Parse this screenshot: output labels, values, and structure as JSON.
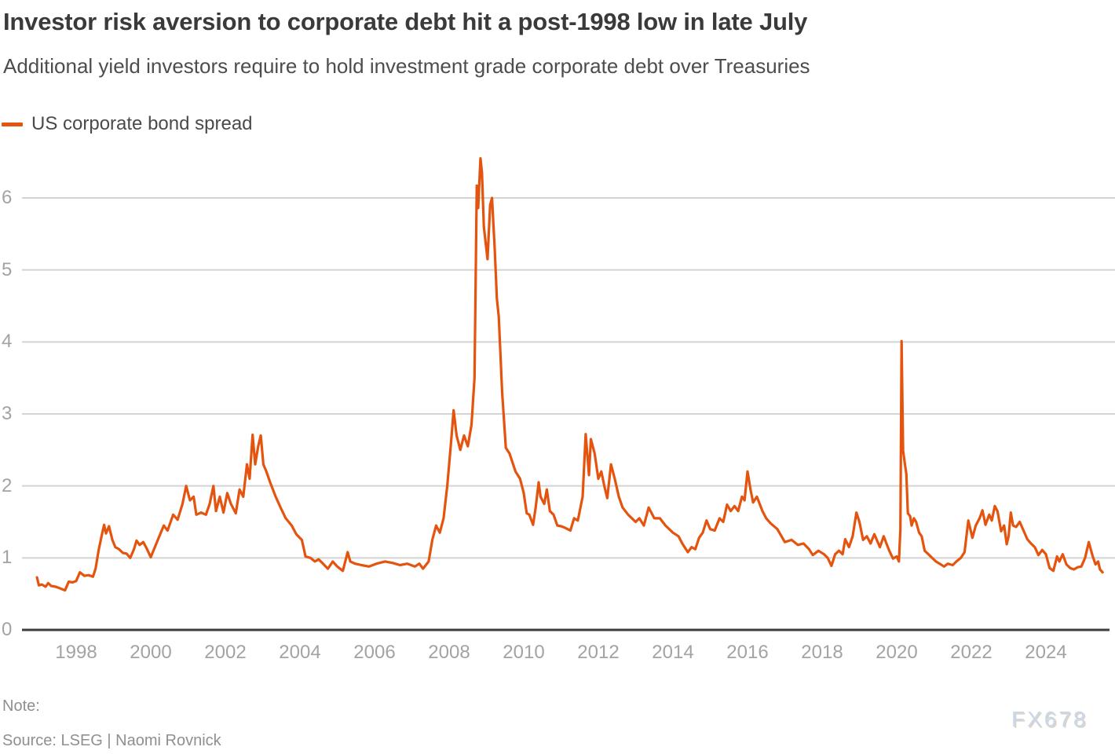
{
  "header": {
    "title": "Investor risk aversion to corporate debt hit a post-1998 low in late July",
    "subtitle": "Additional yield investors require to hold investment grade corporate debt over Treasuries"
  },
  "legend": {
    "label": "US corporate bond spread",
    "color": "#e4540e"
  },
  "chart_data": {
    "type": "line",
    "title": "Investor risk aversion to corporate debt hit a post-1998 low in late July",
    "subtitle": "Additional yield investors require to hold investment grade corporate debt over Treasuries",
    "xlabel": "",
    "ylabel": "",
    "grid": "horizontal",
    "legend_position": "top-left",
    "x_ticks": [
      1998,
      2000,
      2002,
      2004,
      2006,
      2008,
      2010,
      2012,
      2014,
      2016,
      2018,
      2020,
      2022,
      2024
    ],
    "y_ticks": [
      0,
      1,
      2,
      3,
      4,
      5,
      6
    ],
    "xlim": [
      1996.8,
      2025.9
    ],
    "ylim": [
      0,
      6.7
    ],
    "series": [
      {
        "name": "US corporate bond spread",
        "color": "#e4540e",
        "points": [
          [
            1996.95,
            0.73
          ],
          [
            1997.0,
            0.62
          ],
          [
            1997.08,
            0.63
          ],
          [
            1997.18,
            0.6
          ],
          [
            1997.25,
            0.65
          ],
          [
            1997.33,
            0.61
          ],
          [
            1997.45,
            0.6
          ],
          [
            1997.55,
            0.58
          ],
          [
            1997.7,
            0.55
          ],
          [
            1997.8,
            0.67
          ],
          [
            1997.9,
            0.66
          ],
          [
            1998.0,
            0.68
          ],
          [
            1998.1,
            0.8
          ],
          [
            1998.22,
            0.75
          ],
          [
            1998.33,
            0.76
          ],
          [
            1998.45,
            0.74
          ],
          [
            1998.52,
            0.85
          ],
          [
            1998.6,
            1.1
          ],
          [
            1998.68,
            1.3
          ],
          [
            1998.75,
            1.46
          ],
          [
            1998.8,
            1.34
          ],
          [
            1998.88,
            1.44
          ],
          [
            1998.97,
            1.25
          ],
          [
            1999.05,
            1.15
          ],
          [
            1999.15,
            1.12
          ],
          [
            1999.25,
            1.07
          ],
          [
            1999.35,
            1.06
          ],
          [
            1999.45,
            1.0
          ],
          [
            1999.55,
            1.12
          ],
          [
            1999.62,
            1.24
          ],
          [
            1999.7,
            1.18
          ],
          [
            1999.8,
            1.22
          ],
          [
            1999.9,
            1.12
          ],
          [
            2000.0,
            1.01
          ],
          [
            2000.15,
            1.2
          ],
          [
            2000.35,
            1.45
          ],
          [
            2000.45,
            1.38
          ],
          [
            2000.6,
            1.6
          ],
          [
            2000.72,
            1.53
          ],
          [
            2000.85,
            1.75
          ],
          [
            2000.95,
            2.0
          ],
          [
            2001.05,
            1.8
          ],
          [
            2001.15,
            1.85
          ],
          [
            2001.22,
            1.6
          ],
          [
            2001.35,
            1.63
          ],
          [
            2001.48,
            1.6
          ],
          [
            2001.58,
            1.75
          ],
          [
            2001.68,
            2.0
          ],
          [
            2001.75,
            1.65
          ],
          [
            2001.85,
            1.85
          ],
          [
            2001.95,
            1.63
          ],
          [
            2002.05,
            1.9
          ],
          [
            2002.15,
            1.75
          ],
          [
            2002.28,
            1.62
          ],
          [
            2002.38,
            1.95
          ],
          [
            2002.48,
            1.85
          ],
          [
            2002.58,
            2.3
          ],
          [
            2002.65,
            2.1
          ],
          [
            2002.73,
            2.71
          ],
          [
            2002.8,
            2.3
          ],
          [
            2002.88,
            2.55
          ],
          [
            2002.95,
            2.7
          ],
          [
            2003.02,
            2.3
          ],
          [
            2003.1,
            2.2
          ],
          [
            2003.2,
            2.05
          ],
          [
            2003.35,
            1.85
          ],
          [
            2003.48,
            1.7
          ],
          [
            2003.62,
            1.55
          ],
          [
            2003.78,
            1.45
          ],
          [
            2003.9,
            1.33
          ],
          [
            2004.05,
            1.25
          ],
          [
            2004.15,
            1.02
          ],
          [
            2004.28,
            1.0
          ],
          [
            2004.4,
            0.95
          ],
          [
            2004.5,
            0.98
          ],
          [
            2004.62,
            0.92
          ],
          [
            2004.75,
            0.85
          ],
          [
            2004.88,
            0.95
          ],
          [
            2005.0,
            0.88
          ],
          [
            2005.15,
            0.82
          ],
          [
            2005.28,
            1.08
          ],
          [
            2005.35,
            0.95
          ],
          [
            2005.48,
            0.92
          ],
          [
            2005.65,
            0.9
          ],
          [
            2005.85,
            0.88
          ],
          [
            2006.05,
            0.92
          ],
          [
            2006.28,
            0.95
          ],
          [
            2006.48,
            0.93
          ],
          [
            2006.68,
            0.9
          ],
          [
            2006.88,
            0.92
          ],
          [
            2007.08,
            0.88
          ],
          [
            2007.2,
            0.92
          ],
          [
            2007.3,
            0.85
          ],
          [
            2007.45,
            0.95
          ],
          [
            2007.55,
            1.25
          ],
          [
            2007.65,
            1.45
          ],
          [
            2007.75,
            1.35
          ],
          [
            2007.85,
            1.55
          ],
          [
            2007.95,
            2.0
          ],
          [
            2008.05,
            2.6
          ],
          [
            2008.12,
            3.05
          ],
          [
            2008.2,
            2.7
          ],
          [
            2008.3,
            2.5
          ],
          [
            2008.4,
            2.7
          ],
          [
            2008.5,
            2.55
          ],
          [
            2008.6,
            2.85
          ],
          [
            2008.68,
            3.5
          ],
          [
            2008.74,
            6.17
          ],
          [
            2008.78,
            5.86
          ],
          [
            2008.84,
            6.55
          ],
          [
            2008.88,
            6.35
          ],
          [
            2008.93,
            5.6
          ],
          [
            2009.03,
            5.15
          ],
          [
            2009.1,
            5.9
          ],
          [
            2009.15,
            6.0
          ],
          [
            2009.22,
            5.3
          ],
          [
            2009.28,
            4.6
          ],
          [
            2009.33,
            4.35
          ],
          [
            2009.42,
            3.3
          ],
          [
            2009.52,
            2.53
          ],
          [
            2009.62,
            2.45
          ],
          [
            2009.78,
            2.2
          ],
          [
            2009.9,
            2.1
          ],
          [
            2010.0,
            1.9
          ],
          [
            2010.08,
            1.62
          ],
          [
            2010.15,
            1.6
          ],
          [
            2010.25,
            1.46
          ],
          [
            2010.32,
            1.7
          ],
          [
            2010.4,
            2.05
          ],
          [
            2010.45,
            1.85
          ],
          [
            2010.55,
            1.75
          ],
          [
            2010.62,
            1.95
          ],
          [
            2010.7,
            1.65
          ],
          [
            2010.8,
            1.6
          ],
          [
            2010.9,
            1.45
          ],
          [
            2011.0,
            1.44
          ],
          [
            2011.1,
            1.42
          ],
          [
            2011.25,
            1.38
          ],
          [
            2011.35,
            1.55
          ],
          [
            2011.45,
            1.52
          ],
          [
            2011.58,
            1.85
          ],
          [
            2011.66,
            2.72
          ],
          [
            2011.75,
            2.15
          ],
          [
            2011.8,
            2.65
          ],
          [
            2011.9,
            2.45
          ],
          [
            2012.0,
            2.1
          ],
          [
            2012.08,
            2.2
          ],
          [
            2012.16,
            2.0
          ],
          [
            2012.24,
            1.83
          ],
          [
            2012.34,
            2.3
          ],
          [
            2012.44,
            2.1
          ],
          [
            2012.55,
            1.85
          ],
          [
            2012.65,
            1.7
          ],
          [
            2012.8,
            1.6
          ],
          [
            2013.0,
            1.5
          ],
          [
            2013.1,
            1.55
          ],
          [
            2013.22,
            1.45
          ],
          [
            2013.35,
            1.7
          ],
          [
            2013.5,
            1.55
          ],
          [
            2013.65,
            1.55
          ],
          [
            2013.8,
            1.45
          ],
          [
            2014.0,
            1.35
          ],
          [
            2014.15,
            1.3
          ],
          [
            2014.25,
            1.2
          ],
          [
            2014.4,
            1.08
          ],
          [
            2014.5,
            1.15
          ],
          [
            2014.6,
            1.12
          ],
          [
            2014.7,
            1.28
          ],
          [
            2014.8,
            1.35
          ],
          [
            2014.9,
            1.52
          ],
          [
            2015.0,
            1.4
          ],
          [
            2015.12,
            1.38
          ],
          [
            2015.25,
            1.55
          ],
          [
            2015.35,
            1.5
          ],
          [
            2015.45,
            1.74
          ],
          [
            2015.55,
            1.65
          ],
          [
            2015.65,
            1.72
          ],
          [
            2015.75,
            1.65
          ],
          [
            2015.85,
            1.85
          ],
          [
            2015.92,
            1.8
          ],
          [
            2016.0,
            2.2
          ],
          [
            2016.08,
            1.95
          ],
          [
            2016.15,
            1.77
          ],
          [
            2016.25,
            1.85
          ],
          [
            2016.4,
            1.65
          ],
          [
            2016.5,
            1.55
          ],
          [
            2016.62,
            1.48
          ],
          [
            2016.8,
            1.4
          ],
          [
            2017.0,
            1.22
          ],
          [
            2017.18,
            1.25
          ],
          [
            2017.35,
            1.18
          ],
          [
            2017.5,
            1.2
          ],
          [
            2017.65,
            1.12
          ],
          [
            2017.75,
            1.04
          ],
          [
            2017.9,
            1.1
          ],
          [
            2018.05,
            1.05
          ],
          [
            2018.15,
            1.0
          ],
          [
            2018.25,
            0.89
          ],
          [
            2018.35,
            1.05
          ],
          [
            2018.45,
            1.1
          ],
          [
            2018.55,
            1.05
          ],
          [
            2018.62,
            1.26
          ],
          [
            2018.72,
            1.15
          ],
          [
            2018.82,
            1.3
          ],
          [
            2018.92,
            1.63
          ],
          [
            2019.0,
            1.5
          ],
          [
            2019.1,
            1.25
          ],
          [
            2019.2,
            1.3
          ],
          [
            2019.3,
            1.2
          ],
          [
            2019.4,
            1.33
          ],
          [
            2019.55,
            1.15
          ],
          [
            2019.65,
            1.3
          ],
          [
            2019.8,
            1.1
          ],
          [
            2019.9,
            0.99
          ],
          [
            2020.0,
            1.02
          ],
          [
            2020.06,
            0.95
          ],
          [
            2020.1,
            1.4
          ],
          [
            2020.13,
            4.01
          ],
          [
            2020.17,
            2.49
          ],
          [
            2020.22,
            2.3
          ],
          [
            2020.26,
            2.16
          ],
          [
            2020.3,
            1.62
          ],
          [
            2020.36,
            1.58
          ],
          [
            2020.4,
            1.45
          ],
          [
            2020.46,
            1.55
          ],
          [
            2020.52,
            1.5
          ],
          [
            2020.6,
            1.35
          ],
          [
            2020.67,
            1.3
          ],
          [
            2020.75,
            1.1
          ],
          [
            2020.85,
            1.05
          ],
          [
            2020.95,
            1.0
          ],
          [
            2021.05,
            0.95
          ],
          [
            2021.15,
            0.92
          ],
          [
            2021.27,
            0.88
          ],
          [
            2021.37,
            0.92
          ],
          [
            2021.5,
            0.9
          ],
          [
            2021.6,
            0.95
          ],
          [
            2021.72,
            1.0
          ],
          [
            2021.82,
            1.08
          ],
          [
            2021.92,
            1.52
          ],
          [
            2022.03,
            1.28
          ],
          [
            2022.12,
            1.45
          ],
          [
            2022.22,
            1.55
          ],
          [
            2022.3,
            1.66
          ],
          [
            2022.38,
            1.46
          ],
          [
            2022.48,
            1.6
          ],
          [
            2022.55,
            1.52
          ],
          [
            2022.63,
            1.72
          ],
          [
            2022.7,
            1.65
          ],
          [
            2022.8,
            1.37
          ],
          [
            2022.88,
            1.45
          ],
          [
            2022.95,
            1.19
          ],
          [
            2023.0,
            1.3
          ],
          [
            2023.06,
            1.63
          ],
          [
            2023.12,
            1.45
          ],
          [
            2023.2,
            1.43
          ],
          [
            2023.3,
            1.5
          ],
          [
            2023.4,
            1.38
          ],
          [
            2023.5,
            1.26
          ],
          [
            2023.6,
            1.2
          ],
          [
            2023.7,
            1.15
          ],
          [
            2023.8,
            1.04
          ],
          [
            2023.9,
            1.11
          ],
          [
            2024.0,
            1.05
          ],
          [
            2024.1,
            0.86
          ],
          [
            2024.2,
            0.82
          ],
          [
            2024.3,
            1.02
          ],
          [
            2024.36,
            0.95
          ],
          [
            2024.45,
            1.05
          ],
          [
            2024.55,
            0.91
          ],
          [
            2024.65,
            0.86
          ],
          [
            2024.75,
            0.84
          ],
          [
            2024.85,
            0.87
          ],
          [
            2024.95,
            0.88
          ],
          [
            2025.05,
            1.0
          ],
          [
            2025.15,
            1.22
          ],
          [
            2025.25,
            1.03
          ],
          [
            2025.33,
            0.91
          ],
          [
            2025.4,
            0.95
          ],
          [
            2025.45,
            0.84
          ],
          [
            2025.52,
            0.8
          ]
        ]
      }
    ]
  },
  "footer": {
    "note_label": "Note:",
    "source": "Source: LSEG | Naomi Rovnick",
    "watermark": "FX678"
  }
}
